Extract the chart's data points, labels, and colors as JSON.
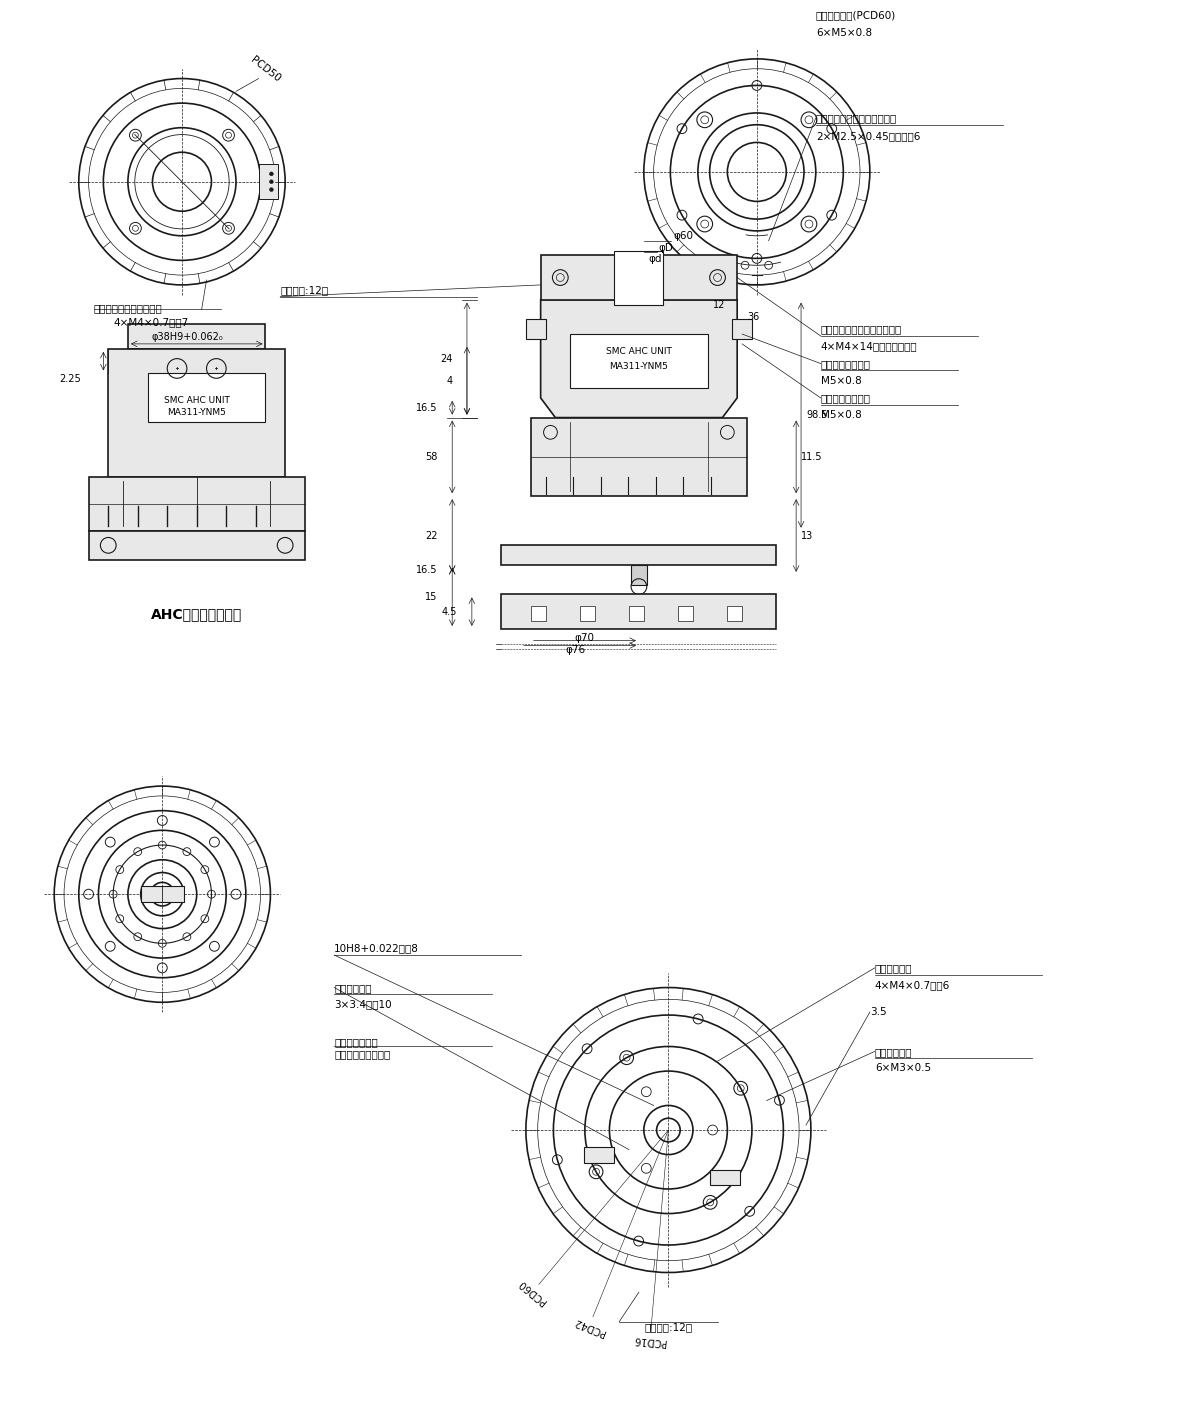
{
  "bg_color": "#ffffff",
  "line_color": "#1a1a1a",
  "light_fill": "#e8e8e8",
  "medium_fill": "#d0d0d0",
  "annotations": {
    "top_left_label1": "ロボットアダプタ取付用",
    "top_left_label2": "4×M4×0.7深さ7",
    "top_left_pcd": "PCD50",
    "top_right_label1": "空気圧ポート(PCD60)",
    "top_right_label2": "6×M5×0.8",
    "top_right_label3": "電気接点増設ユニット取付用",
    "top_right_label4": "2×M2.5×0.45ねじ深さ6",
    "robot_bolt": "ロボットシャフト取付ボルト",
    "robot_bolt2": "4×M4×14六角穴付ボルト",
    "connect_port": "連結／操作ポート",
    "connect_port2": "M5×0.8",
    "separate_port": "分離／操作ポート",
    "separate_port2": "M5×0.8",
    "elec_contacts": "電気接点:12本",
    "dim_phi60": "φ60",
    "dim_phiD": "φD",
    "dim_phid": "φd",
    "dim_24": "24",
    "dim_4": "4",
    "dim_165_top": "16.5",
    "dim_58": "58",
    "dim_22": "22",
    "dim_165_bot": "16.5",
    "dim_15": "15",
    "dim_45": "4.5",
    "dim_985": "98.5",
    "dim_115": "11.5",
    "dim_13": "13",
    "dim_phi70": "φ70",
    "dim_phi76": "φ76",
    "dim_36": "36",
    "dim_12": "12",
    "dim_225": "2.25",
    "dim_phi38": "φ38H9+0.062₀",
    "ahc_label": "AHCユニット連結部",
    "smc_text1": "SMC AHC UNIT",
    "smc_text2": "MA311-YNM5",
    "bottom_label1": "10H8+0.022深さ8",
    "bottom_label2": "ツール取付用",
    "bottom_label3": "3×3.4深さ10",
    "bottom_label4": "ツールスタンド",
    "bottom_label5": "センサ用マグネット",
    "bottom_right1": "ツール取付用",
    "bottom_right2": "4×M4×0.7深さ6",
    "bottom_right3": "空気圧ポート",
    "bottom_right4": "6×M3×0.5",
    "bottom_right5": "3.5",
    "pcd60_bot": "PCD60",
    "pcd42_bot": "PCD42",
    "pcd16_bot": "PCD16",
    "elec12": "電気接点:12本"
  }
}
